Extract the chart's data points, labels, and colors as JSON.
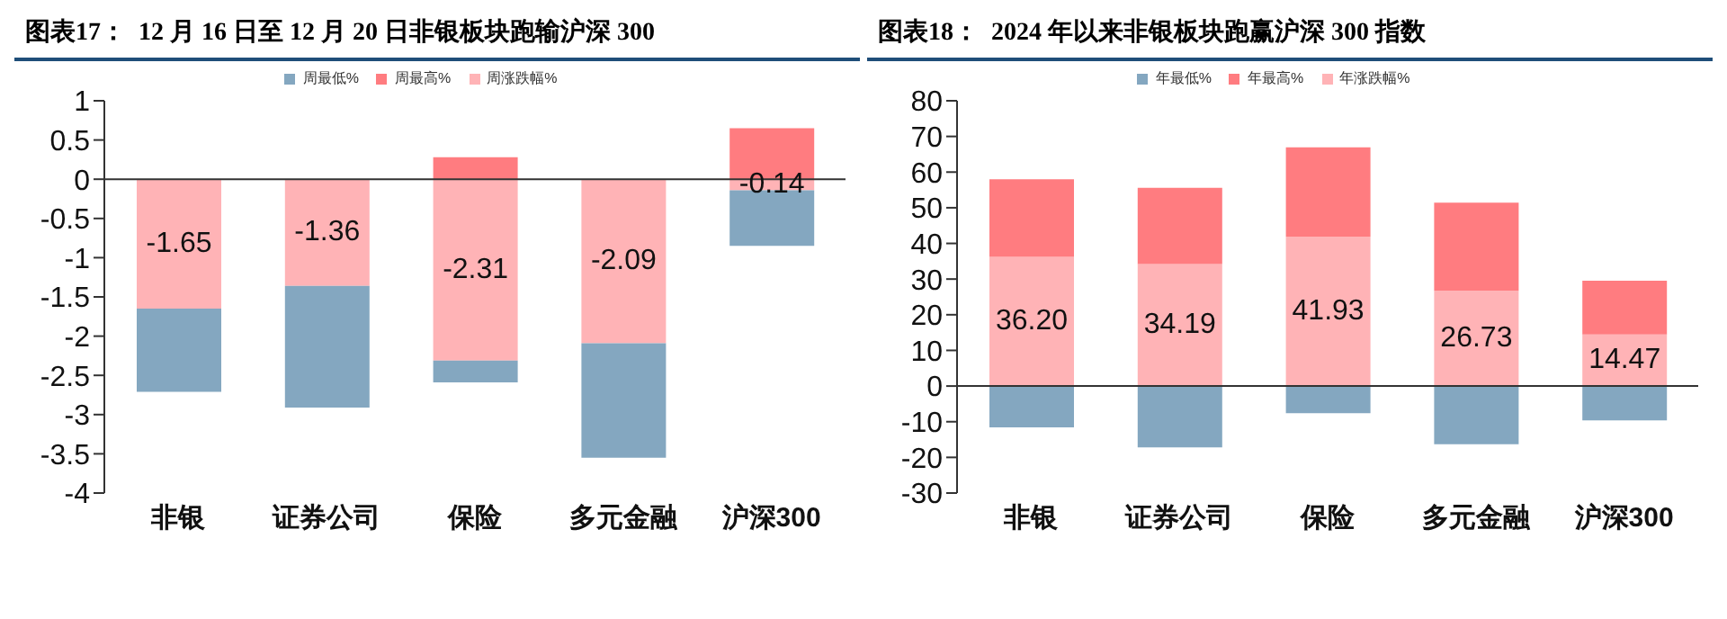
{
  "chart_data": [
    {
      "type": "bar",
      "title": "图表17：  12 月 16 日至 12 月 20 日非银板块跑输沪深 300",
      "categories": [
        "非银",
        "证券公司",
        "保险",
        "多元金融",
        "沪深300"
      ],
      "stacked": true,
      "legend": "top",
      "ylim": [
        -4,
        1
      ],
      "yticks": [
        -4,
        -3.5,
        -3,
        -2.5,
        -2,
        -1.5,
        -1,
        -0.5,
        0,
        0.5,
        1
      ],
      "series": [
        {
          "name": "周涨跌幅%",
          "color": "#ffb3b6",
          "values": [
            -1.65,
            -1.36,
            -2.31,
            -2.09,
            -0.14
          ],
          "value_labels": [
            "-1.65",
            "-1.36",
            "-2.31",
            "-2.09",
            "-0.14"
          ]
        },
        {
          "name": "周最高%",
          "color": "#ff7c80",
          "values": [
            null,
            null,
            0.28,
            null,
            0.65
          ]
        },
        {
          "name": "周最低%",
          "color": "#84a7c0",
          "values": [
            -1.06,
            -1.55,
            -0.28,
            -1.46,
            -0.71
          ]
        }
      ]
    },
    {
      "type": "bar",
      "title": "图表18：  2024 年以来非银板块跑赢沪深 300 指数",
      "categories": [
        "非银",
        "证券公司",
        "保险",
        "多元金融",
        "沪深300"
      ],
      "stacked": true,
      "legend": "top",
      "ylim": [
        -30,
        80
      ],
      "yticks": [
        -30,
        -20,
        -10,
        0,
        10,
        20,
        30,
        40,
        50,
        60,
        70,
        80
      ],
      "series": [
        {
          "name": "年涨跌幅%",
          "color": "#ffb3b6",
          "values": [
            36.2,
            34.19,
            41.93,
            26.73,
            14.47
          ],
          "value_labels": [
            "36.20",
            "34.19",
            "41.93",
            "26.73",
            "14.47"
          ]
        },
        {
          "name": "年最高%",
          "color": "#ff7c80",
          "values": [
            21.8,
            21.4,
            25.0,
            24.7,
            15.1
          ]
        },
        {
          "name": "年最低%",
          "color": "#84a7c0",
          "values": [
            -11.6,
            -17.2,
            -7.6,
            -16.3,
            -9.6
          ]
        }
      ]
    }
  ]
}
